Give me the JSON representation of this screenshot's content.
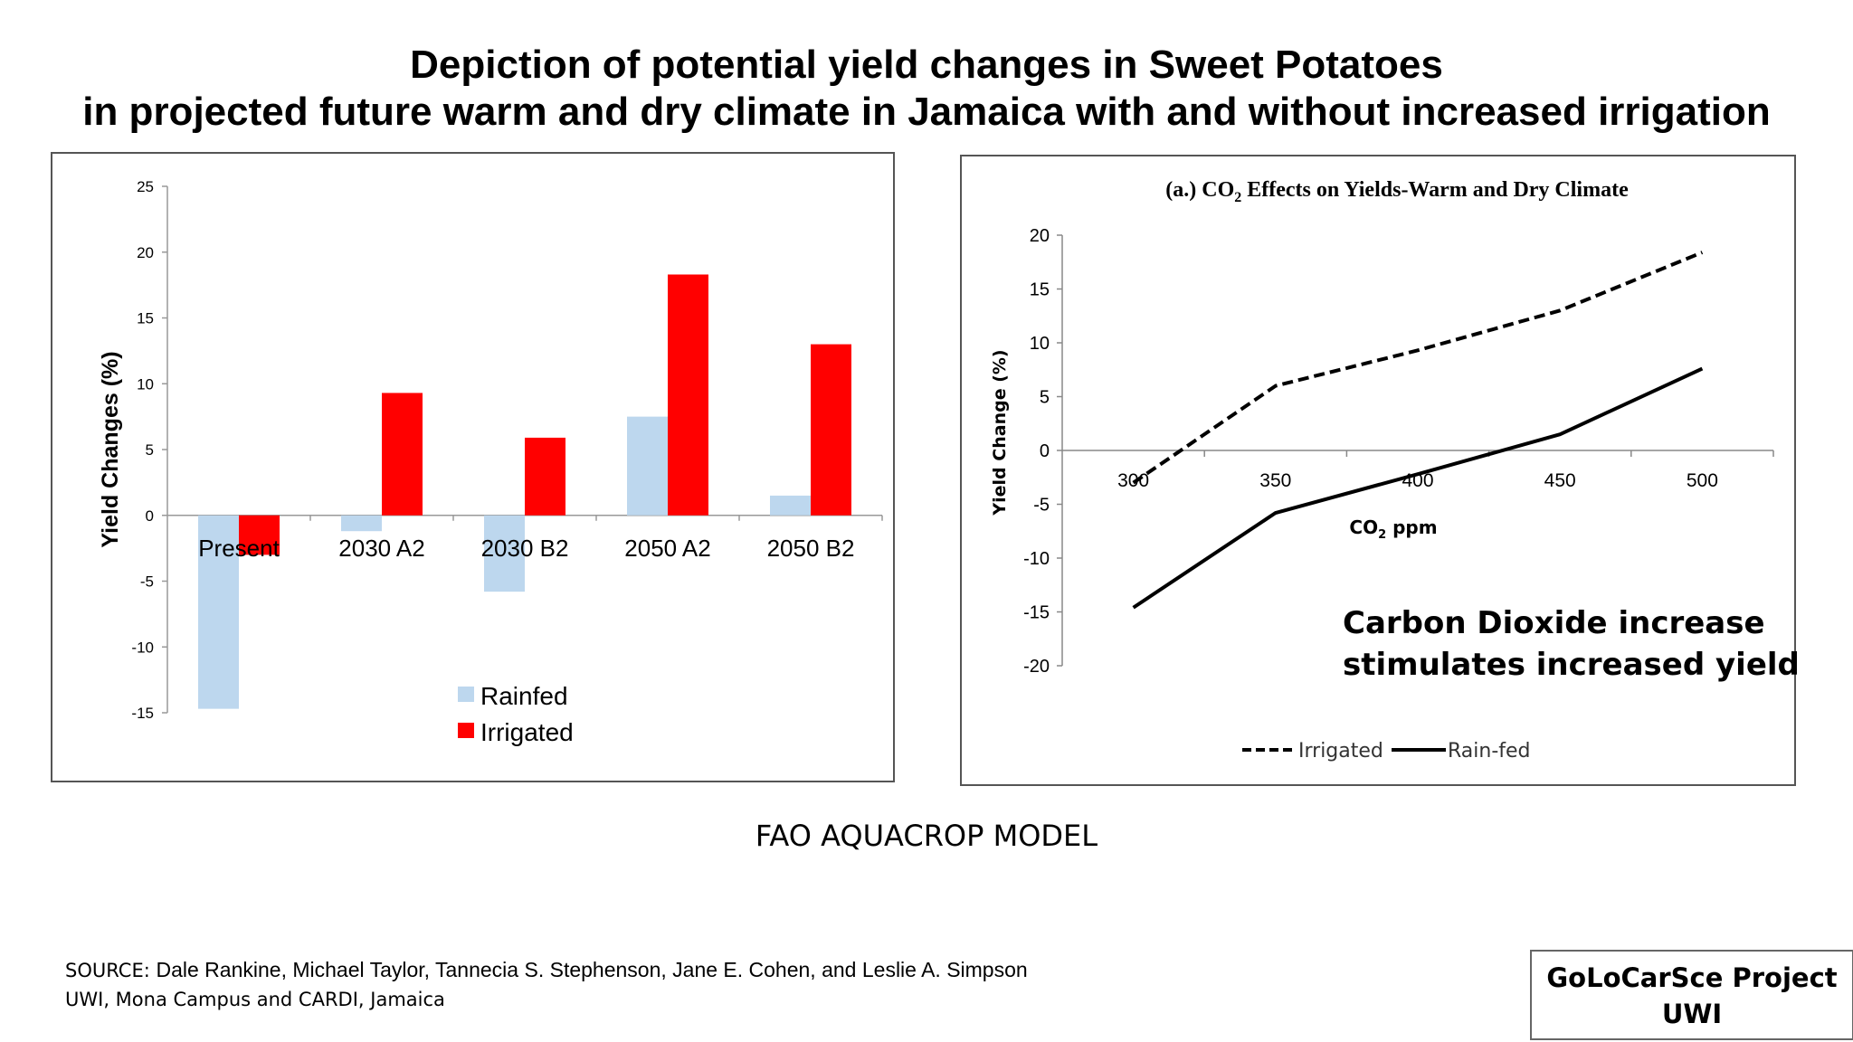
{
  "title_line1": "Depiction of potential yield changes in Sweet Potatoes",
  "title_line2": "in projected future warm and dry climate in Jamaica with and without increased irrigation",
  "caption": "FAO AQUACROP MODEL",
  "source_line1_prefix": "SOURCE:",
  "source_line1_authors": "Dale Rankine, Michael Taylor, Tannecia S. Stephenson, Jane E. Cohen, and Leslie A. Simpson",
  "source_line2": "UWI, Mona Campus and CARDI, Jamaica",
  "project_line1": "GoLoCarSce Project",
  "project_line2": "UWI",
  "annotation_line1": "Carbon Dioxide increase",
  "annotation_line2": "stimulates increased yield",
  "colors": {
    "rainfed": "#bdd7ee",
    "irrigated": "#ff0000",
    "line": "#000000"
  },
  "chart_data": [
    {
      "type": "bar",
      "title": "",
      "ylabel": "Yield Changes (%)",
      "xlabel": "",
      "ylim": [
        -15,
        25
      ],
      "yticks": [
        25,
        20,
        15,
        10,
        5,
        0,
        -5,
        -10,
        -15
      ],
      "categories": [
        "Present",
        "2030 A2",
        "2030 B2",
        "2050 A2",
        "2050 B2"
      ],
      "series": [
        {
          "name": "Rainfed",
          "values": [
            -14.7,
            -1.2,
            -5.8,
            7.5,
            1.5
          ]
        },
        {
          "name": "Irrigated",
          "values": [
            -3.0,
            9.3,
            5.9,
            18.3,
            13.0
          ]
        }
      ],
      "legend": "bottom-center"
    },
    {
      "type": "line",
      "title_prefix": "(a.) CO",
      "title_sub": "2",
      "title_suffix": " Effects on Yields-Warm and Dry Climate",
      "ylabel": "Yield Change (%)",
      "xlabel_prefix": "CO",
      "xlabel_sub": "2",
      "xlabel_suffix": " ppm",
      "ylim": [
        -20,
        20
      ],
      "yticks": [
        20,
        15,
        10,
        5,
        0,
        -5,
        -10,
        -15,
        -20
      ],
      "x": [
        300,
        350,
        400,
        450,
        500
      ],
      "series": [
        {
          "name": "Irrigated",
          "style": "dashed",
          "values": [
            -3.0,
            6.0,
            9.3,
            13.0,
            18.4
          ]
        },
        {
          "name": "Rain-fed",
          "style": "solid",
          "values": [
            -14.6,
            -5.8,
            -2.2,
            1.5,
            7.6
          ]
        }
      ],
      "legend": "bottom-center"
    }
  ]
}
